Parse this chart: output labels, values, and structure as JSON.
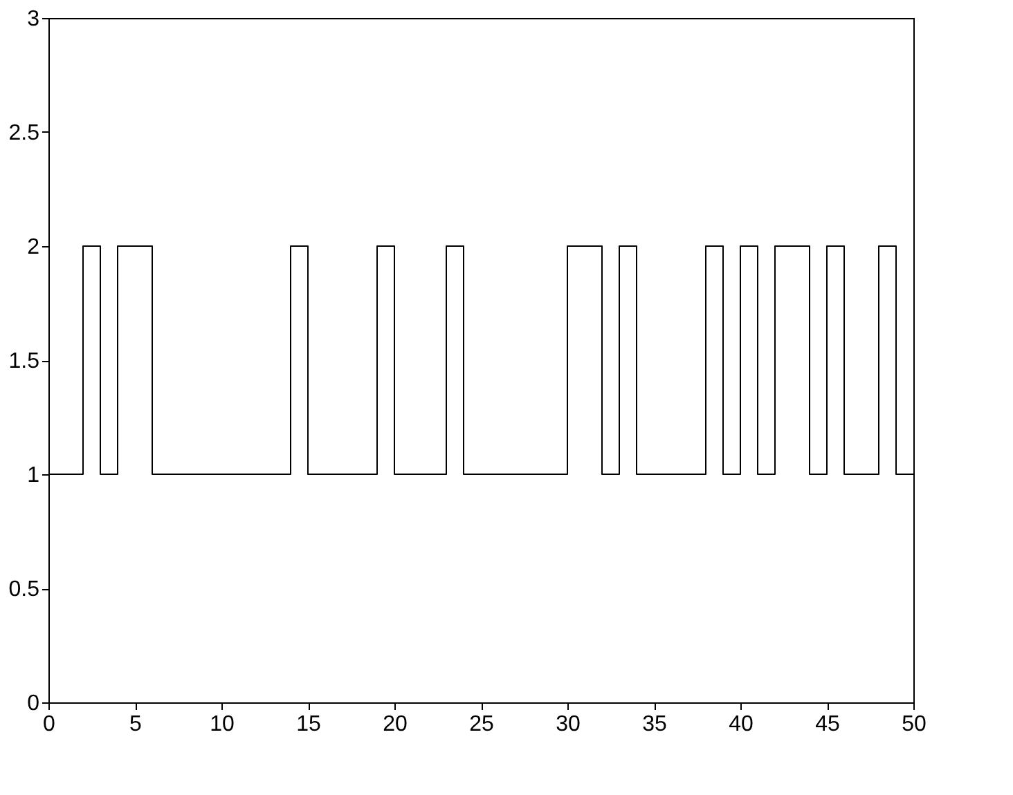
{
  "chart_data": {
    "type": "step",
    "x": [
      0,
      1,
      2,
      3,
      4,
      5,
      6,
      7,
      8,
      9,
      10,
      11,
      12,
      13,
      14,
      15,
      16,
      17,
      18,
      19,
      20,
      21,
      22,
      23,
      24,
      25,
      26,
      27,
      28,
      29,
      30,
      31,
      32,
      33,
      34,
      35,
      36,
      37,
      38,
      39,
      40,
      41,
      42,
      43,
      44,
      45,
      46,
      47,
      48,
      49,
      50
    ],
    "series": [
      {
        "color": "#000000",
        "values": [
          1,
          1,
          2,
          1,
          2,
          2,
          1,
          1,
          1,
          1,
          1,
          1,
          1,
          1,
          2,
          1,
          1,
          1,
          1,
          2,
          1,
          1,
          1,
          2,
          1,
          1,
          1,
          1,
          1,
          1,
          2,
          2,
          1,
          2,
          1,
          1,
          1,
          1,
          2,
          1,
          2,
          1,
          2,
          2,
          1,
          2,
          1,
          1,
          2,
          1,
          1
        ]
      }
    ],
    "xlim": [
      0,
      50
    ],
    "xticks": [
      0,
      5,
      10,
      15,
      20,
      25,
      30,
      35,
      40,
      45,
      50
    ],
    "ylim": [
      0,
      3
    ],
    "yticks": [
      0,
      0.5,
      1,
      1.5,
      2,
      2.5,
      3
    ],
    "grid": false,
    "marker": "none",
    "line_style": "solid"
  }
}
